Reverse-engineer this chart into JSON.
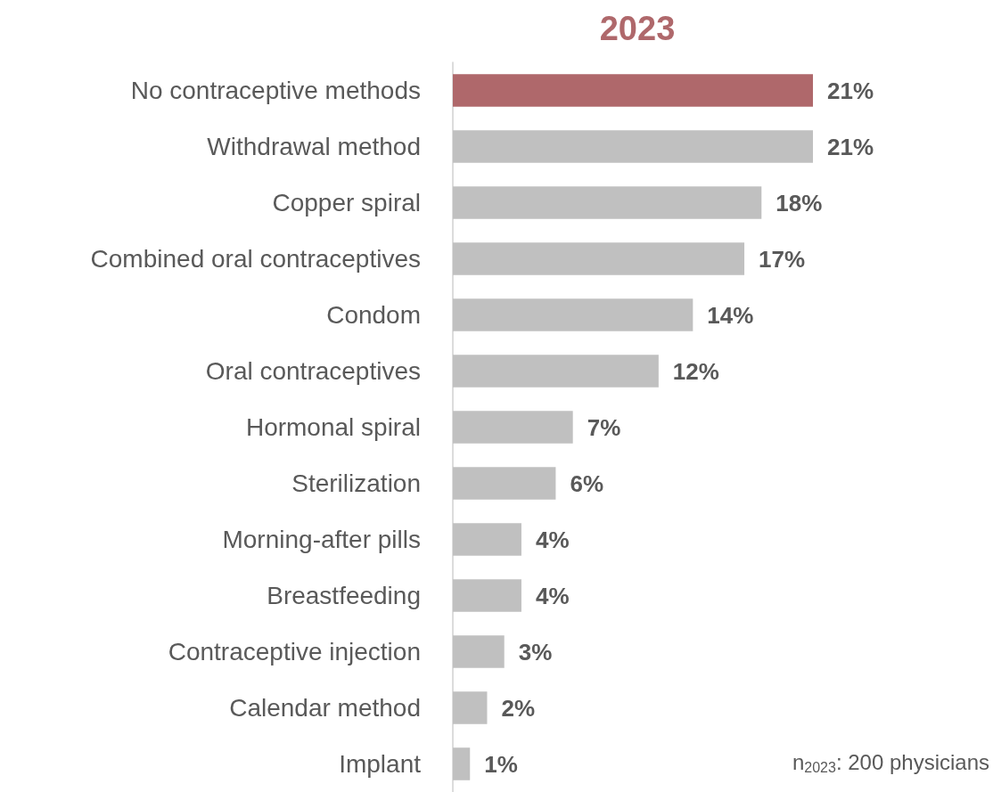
{
  "chart_data": {
    "type": "bar",
    "orientation": "horizontal",
    "title": "2023",
    "categories": [
      "No contraceptive methods",
      "Withdrawal method",
      "Copper spiral",
      "Combined oral contraceptives",
      "Condom",
      "Oral contraceptives",
      "Hormonal spiral",
      "Sterilization",
      "Morning-after pills",
      "Breastfeeding",
      "Contraceptive injection",
      "Calendar method",
      "Implant"
    ],
    "values": [
      21,
      21,
      18,
      17,
      14,
      12,
      7,
      6,
      4,
      4,
      3,
      2,
      1
    ],
    "colors": [
      "#af686b",
      "#c0c0c0",
      "#c0c0c0",
      "#c0c0c0",
      "#c0c0c0",
      "#c0c0c0",
      "#c0c0c0",
      "#c0c0c0",
      "#c0c0c0",
      "#c0c0c0",
      "#c0c0c0",
      "#c0c0c0",
      "#c0c0c0"
    ],
    "value_labels": [
      "21%",
      "21%",
      "18%",
      "17%",
      "14%",
      "12%",
      "7%",
      "6%",
      "4%",
      "4%",
      "3%",
      "2%",
      "1%"
    ],
    "annotations": [
      "n$_{2023}$: 200 physicians"
    ]
  }
}
